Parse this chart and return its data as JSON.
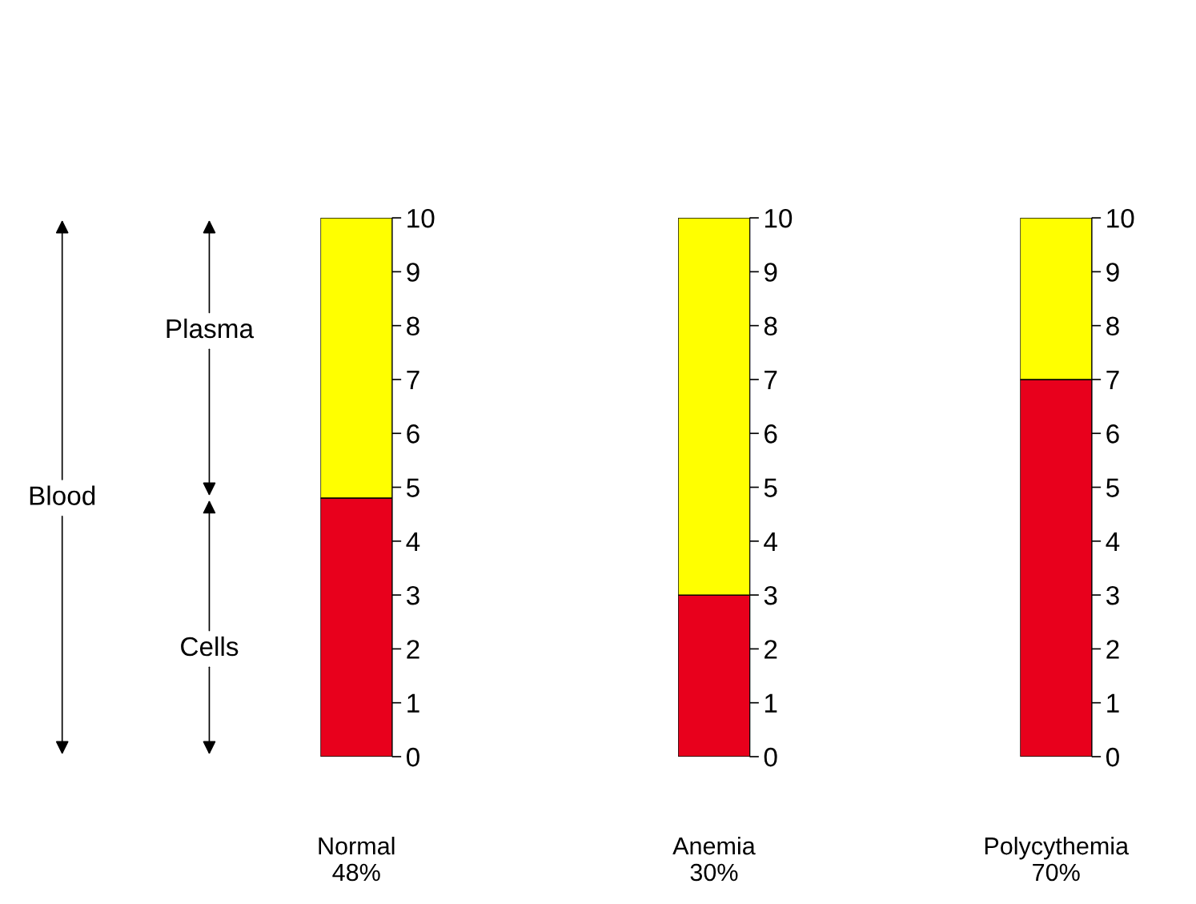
{
  "chart_data": [
    {
      "type": "bar",
      "stacked": true,
      "categories": [
        "Normal\n48%"
      ],
      "ylim": [
        0,
        10
      ],
      "yticks": [
        0,
        1,
        2,
        3,
        4,
        5,
        6,
        7,
        8,
        9,
        10
      ],
      "grid": false,
      "legend": false,
      "series": [
        {
          "color": "#e8001c",
          "values": [
            4.8
          ]
        },
        {
          "color": "#ffff00",
          "values": [
            5.2
          ]
        }
      ],
      "annotations": [
        "Cells",
        "Plasma",
        "Blood"
      ]
    },
    {
      "type": "bar",
      "stacked": true,
      "categories": [
        "Anemia\n30%"
      ],
      "ylim": [
        0,
        10
      ],
      "yticks": [
        0,
        1,
        2,
        3,
        4,
        5,
        6,
        7,
        8,
        9,
        10
      ],
      "grid": false,
      "legend": false,
      "series": [
        {
          "color": "#e8001c",
          "values": [
            3
          ]
        },
        {
          "color": "#ffff00",
          "values": [
            7
          ]
        }
      ]
    },
    {
      "type": "bar",
      "stacked": true,
      "categories": [
        "Polycythemia\n70%"
      ],
      "ylim": [
        0,
        10
      ],
      "yticks": [
        0,
        1,
        2,
        3,
        4,
        5,
        6,
        7,
        8,
        9,
        10
      ],
      "grid": false,
      "legend": false,
      "series": [
        {
          "color": "#e8001c",
          "values": [
            7
          ]
        },
        {
          "color": "#ffff00",
          "values": [
            3
          ]
        }
      ]
    }
  ]
}
